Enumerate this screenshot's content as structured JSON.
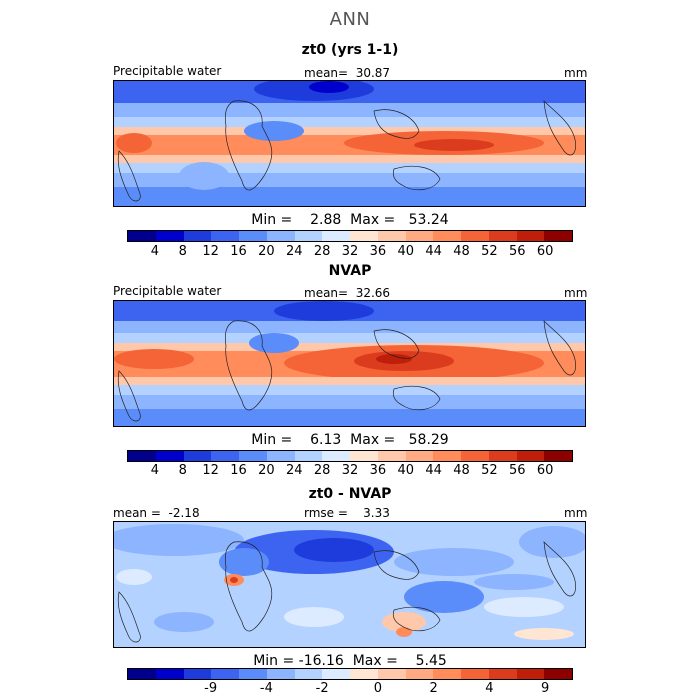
{
  "title": "ANN",
  "colors": {
    "abs_scale": [
      "#00008c",
      "#0000cd",
      "#1e3cdc",
      "#3c64f0",
      "#5a8cfa",
      "#8cb4ff",
      "#b4d2ff",
      "#dcebff",
      "#ffe6d2",
      "#ffc8aa",
      "#ffaa82",
      "#ff8c5a",
      "#f56437",
      "#dc3c1e",
      "#be1e0a",
      "#8c0000"
    ],
    "diff_scale": [
      "#00008c",
      "#0000cd",
      "#1e3cdc",
      "#3c64f0",
      "#5a8cfa",
      "#8cb4ff",
      "#b4d2ff",
      "#dcebff",
      "#ffe6d2",
      "#ffc8aa",
      "#ffaa82",
      "#ff8c5a",
      "#f56437",
      "#dc3c1e",
      "#be1e0a",
      "#8c0000"
    ]
  },
  "panels": [
    {
      "title": "zt0 (yrs 1-1)",
      "variable": "Precipitable water",
      "stat": "mean=  30.87",
      "units": "mm",
      "minmax": "Min =    2.88  Max =   53.24",
      "ticks": [
        "4",
        "8",
        "12",
        "16",
        "20",
        "24",
        "28",
        "32",
        "36",
        "40",
        "44",
        "48",
        "52",
        "56",
        "60"
      ]
    },
    {
      "title": "NVAP",
      "variable": "Precipitable water",
      "stat": "mean=  32.66",
      "units": "mm",
      "minmax": "Min =    6.13  Max =   58.29",
      "ticks": [
        "4",
        "8",
        "12",
        "16",
        "20",
        "24",
        "28",
        "32",
        "36",
        "40",
        "44",
        "48",
        "52",
        "56",
        "60"
      ]
    },
    {
      "title": "zt0 - NVAP",
      "stat_left": "mean =  -2.18",
      "stat_mid": "rmse =    3.33",
      "units": "mm",
      "minmax": "Min = -16.16  Max =    5.45",
      "ticks": [
        "-9",
        "-4",
        "-2",
        "0",
        "2",
        "4",
        "9"
      ]
    }
  ]
}
